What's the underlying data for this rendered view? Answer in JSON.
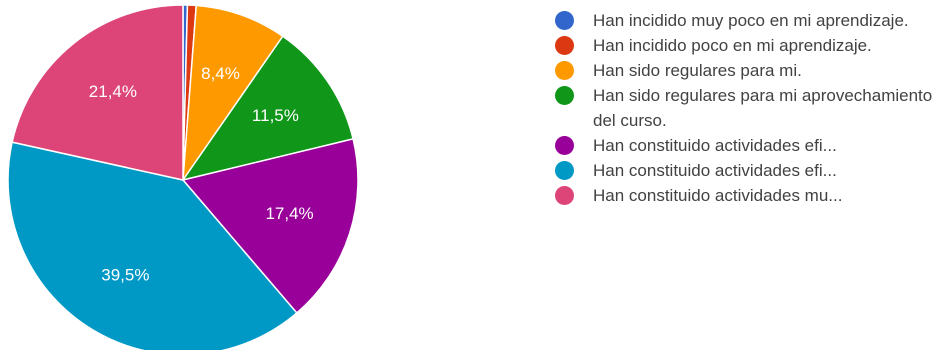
{
  "chart_data": {
    "type": "pie",
    "slices": [
      {
        "label": "Han incidido muy poco en mi aprendizaje.",
        "value": 0.4,
        "color": "#3366cc",
        "display": ""
      },
      {
        "label": "Han incidido poco en mi aprendizaje.",
        "value": 0.8,
        "color": "#dc3912",
        "display": ""
      },
      {
        "label": "Han sido regulares para mi.",
        "value": 8.4,
        "color": "#ff9900",
        "display": "8,4%"
      },
      {
        "label": "Han sido regulares para mi aprovechamiento del curso.",
        "value": 11.5,
        "color": "#109618",
        "display": "11,5%"
      },
      {
        "label": "Han constituido actividades efi...",
        "value": 17.4,
        "color": "#990099",
        "display": "17,4%"
      },
      {
        "label": "Han constituido actividades efi...",
        "value": 39.5,
        "color": "#0099c6",
        "display": "39,5%"
      },
      {
        "label": "Han constituido actividades mu...",
        "value": 21.4,
        "color": "#dd4477",
        "display": "21,4%"
      }
    ],
    "start_angle_deg": 90,
    "direction": "clockwise",
    "legend_position": "right"
  }
}
